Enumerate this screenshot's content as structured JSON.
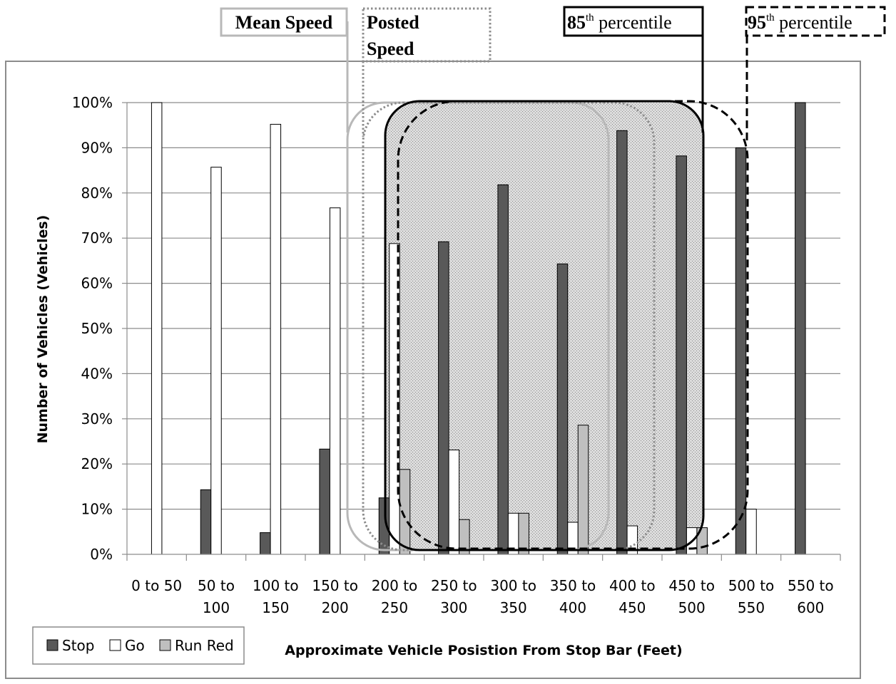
{
  "chart_data": {
    "type": "bar",
    "categories": [
      [
        "0 to 50",
        ""
      ],
      [
        "50 to",
        "100"
      ],
      [
        "100 to",
        "150"
      ],
      [
        "150 to",
        "200"
      ],
      [
        "200 to",
        "250"
      ],
      [
        "250 to",
        "300"
      ],
      [
        "300 to",
        "350"
      ],
      [
        "350 to",
        "400"
      ],
      [
        "400 to",
        "450"
      ],
      [
        "450 to",
        "500"
      ],
      [
        "500 to",
        "550"
      ],
      [
        "550 to",
        "600"
      ]
    ],
    "series": [
      {
        "name": "Stop",
        "color": "#595959",
        "values": [
          0,
          14.3,
          4.8,
          23.3,
          12.5,
          69.2,
          81.8,
          64.3,
          93.8,
          88.2,
          90.0,
          100
        ]
      },
      {
        "name": "Go",
        "color": "#ffffff",
        "values": [
          100,
          85.7,
          95.2,
          76.7,
          68.8,
          23.1,
          9.1,
          7.1,
          6.3,
          5.9,
          10.0,
          0
        ]
      },
      {
        "name": "Run Red",
        "color": "#bfbfbf",
        "values": [
          0,
          0,
          0,
          0,
          18.8,
          7.7,
          9.1,
          28.6,
          0,
          5.9,
          0,
          0
        ]
      }
    ],
    "ylim": [
      0,
      100
    ],
    "yticks": [
      "0%",
      "10%",
      "20%",
      "30%",
      "40%",
      "50%",
      "60%",
      "70%",
      "80%",
      "90%",
      "100%"
    ],
    "xlabel": "Approximate Vehicle Posistion From Stop Bar (Feet)",
    "ylabel": "Number of Vehicles (Vehicles)",
    "grid": true,
    "legend_placement": "bottom-left",
    "annotations": [
      {
        "id": "mean",
        "label": "Mean Speed",
        "style": "solid-light-gray"
      },
      {
        "id": "posted",
        "label_line1": "Posted",
        "label_line2": "Speed",
        "style": "dotted-gray"
      },
      {
        "id": "p85",
        "label_num": "85",
        "label_sup": "th",
        "label_rest": " percentile",
        "style": "solid-black"
      },
      {
        "id": "p95",
        "label_num": "95",
        "label_sup": "th",
        "label_rest": " percentile",
        "style": "dashed-black"
      }
    ]
  }
}
